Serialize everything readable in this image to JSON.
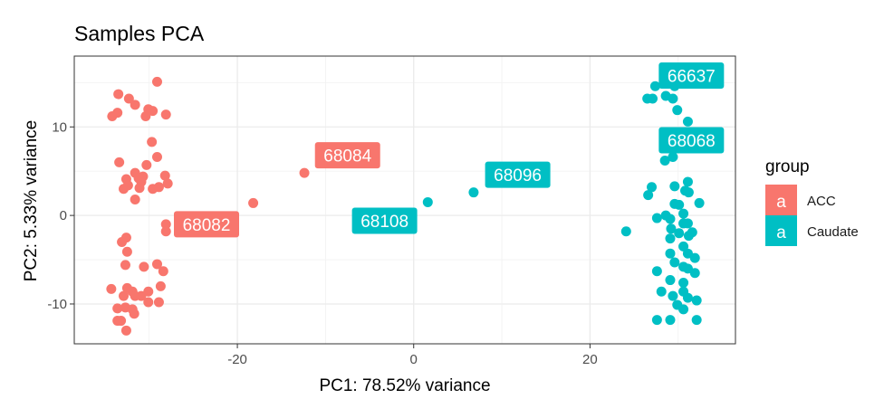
{
  "chart_data": {
    "type": "scatter",
    "title": "Samples PCA",
    "xlabel": "PC1: 78.52% variance",
    "ylabel": "PC2: 5.33% variance",
    "xlim": [
      -38.5,
      36.5
    ],
    "ylim": [
      -14.5,
      18
    ],
    "x_ticks": [
      -20,
      0,
      20
    ],
    "y_ticks": [
      -10,
      0,
      10
    ],
    "x_tick_labels": [
      "-20",
      "0",
      "20"
    ],
    "y_tick_labels": [
      "-10",
      "0",
      "10"
    ],
    "grid": true,
    "legend": {
      "title": "group",
      "position": "right",
      "key_glyph": "a",
      "entries": [
        {
          "name": "ACC",
          "color": "#F8766D"
        },
        {
          "name": "Caudate",
          "color": "#00BFC4"
        }
      ]
    },
    "series": [
      {
        "name": "ACC",
        "color": "#F8766D",
        "points": [
          [
            -33.5,
            13.7
          ],
          [
            -32.3,
            13.2
          ],
          [
            -31.6,
            12.5
          ],
          [
            -29.1,
            15.1
          ],
          [
            -30.1,
            12.0
          ],
          [
            -29.6,
            11.8
          ],
          [
            -34.2,
            11.2
          ],
          [
            -33.6,
            11.6
          ],
          [
            -30.4,
            11.2
          ],
          [
            -28.1,
            11.4
          ],
          [
            -29.7,
            8.3
          ],
          [
            -29.1,
            6.6
          ],
          [
            -30.3,
            5.7
          ],
          [
            -33.4,
            6.0
          ],
          [
            -31.6,
            4.8
          ],
          [
            -32.6,
            4.1
          ],
          [
            -31.2,
            4.2
          ],
          [
            -30.7,
            4.4
          ],
          [
            -28.2,
            4.5
          ],
          [
            -30.9,
            3.8
          ],
          [
            -32.4,
            3.4
          ],
          [
            -32.9,
            3.0
          ],
          [
            -31.1,
            3.1
          ],
          [
            -29.6,
            3.0
          ],
          [
            -28.9,
            3.2
          ],
          [
            -27.9,
            3.6
          ],
          [
            -31.6,
            1.8
          ],
          [
            -28.1,
            -1.0
          ],
          [
            -28.1,
            -1.8
          ],
          [
            -32.6,
            -2.5
          ],
          [
            -33.1,
            -3.0
          ],
          [
            -32.5,
            -4.1
          ],
          [
            -32.7,
            -5.6
          ],
          [
            -30.6,
            -5.8
          ],
          [
            -29.1,
            -5.5
          ],
          [
            -28.4,
            -6.3
          ],
          [
            -34.3,
            -8.3
          ],
          [
            -32.5,
            -8.2
          ],
          [
            -31.9,
            -8.6
          ],
          [
            -31.6,
            -9.1
          ],
          [
            -30.1,
            -8.6
          ],
          [
            -28.7,
            -8.0
          ],
          [
            -32.9,
            -9.1
          ],
          [
            -30.9,
            -9.1
          ],
          [
            -30.1,
            -9.8
          ],
          [
            -28.9,
            -9.8
          ],
          [
            -32.7,
            -10.4
          ],
          [
            -33.6,
            -10.5
          ],
          [
            -31.9,
            -10.6
          ],
          [
            -31.7,
            -11.1
          ],
          [
            -33.6,
            -11.9
          ],
          [
            -33.2,
            -11.9
          ],
          [
            -32.6,
            -13.0
          ],
          [
            -18.2,
            1.4
          ],
          [
            -12.4,
            4.8
          ]
        ]
      },
      {
        "name": "Caudate",
        "color": "#00BFC4",
        "points": [
          [
            27.4,
            14.6
          ],
          [
            29.6,
            14.6
          ],
          [
            27.1,
            13.2
          ],
          [
            26.5,
            13.2
          ],
          [
            28.6,
            13.5
          ],
          [
            29.4,
            13.2
          ],
          [
            29.9,
            11.9
          ],
          [
            31.1,
            10.6
          ],
          [
            29.6,
            8.1
          ],
          [
            29.6,
            7.6
          ],
          [
            29.4,
            6.6
          ],
          [
            28.5,
            6.2
          ],
          [
            31.1,
            3.8
          ],
          [
            29.6,
            3.3
          ],
          [
            30.8,
            2.8
          ],
          [
            31.2,
            2.6
          ],
          [
            27.0,
            3.2
          ],
          [
            26.6,
            2.3
          ],
          [
            29.6,
            1.3
          ],
          [
            30.1,
            1.2
          ],
          [
            32.4,
            1.4
          ],
          [
            30.6,
            0.2
          ],
          [
            28.6,
            0.0
          ],
          [
            27.6,
            -0.3
          ],
          [
            29.1,
            -0.4
          ],
          [
            30.6,
            -0.9
          ],
          [
            31.1,
            -0.9
          ],
          [
            29.2,
            -1.5
          ],
          [
            30.1,
            -2.0
          ],
          [
            31.6,
            -1.9
          ],
          [
            31.2,
            -2.3
          ],
          [
            24.1,
            -1.8
          ],
          [
            29.1,
            -2.6
          ],
          [
            30.6,
            -3.5
          ],
          [
            31.1,
            -4.3
          ],
          [
            29.1,
            -4.3
          ],
          [
            31.9,
            -4.8
          ],
          [
            29.6,
            -5.3
          ],
          [
            30.6,
            -5.8
          ],
          [
            27.6,
            -6.3
          ],
          [
            31.1,
            -6.0
          ],
          [
            31.9,
            -6.5
          ],
          [
            29.1,
            -7.3
          ],
          [
            30.6,
            -7.6
          ],
          [
            28.1,
            -8.6
          ],
          [
            30.6,
            -8.6
          ],
          [
            31.1,
            -9.3
          ],
          [
            32.1,
            -9.6
          ],
          [
            29.4,
            -9.1
          ],
          [
            29.9,
            -10.1
          ],
          [
            30.6,
            -10.6
          ],
          [
            27.6,
            -11.8
          ],
          [
            29.1,
            -11.8
          ],
          [
            32.1,
            -11.8
          ],
          [
            1.6,
            1.5
          ],
          [
            6.8,
            2.6
          ]
        ]
      }
    ],
    "annotations": [
      {
        "text": "66637",
        "group": "Caudate",
        "x": 31.5,
        "y": 15.8
      },
      {
        "text": "68068",
        "group": "Caudate",
        "x": 31.5,
        "y": 8.5
      },
      {
        "text": "68084",
        "group": "ACC",
        "x": -7.5,
        "y": 6.8
      },
      {
        "text": "68096",
        "group": "Caudate",
        "x": 11.8,
        "y": 4.6
      },
      {
        "text": "68108",
        "group": "Caudate",
        "x": -3.3,
        "y": -0.6
      },
      {
        "text": "68082",
        "group": "ACC",
        "x": -23.5,
        "y": -1.0
      }
    ]
  }
}
